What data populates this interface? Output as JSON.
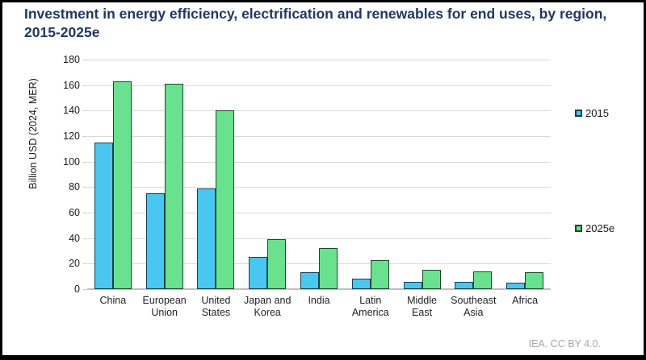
{
  "header": {
    "title": "Investment in energy efficiency, electrification and renewables for end uses, by region, 2015-2025e"
  },
  "chart_data": {
    "type": "bar",
    "title": "Investment in energy efficiency, electrification and renewables for end uses, by region, 2015-2025e",
    "categories": [
      "China",
      "European Union",
      "United States",
      "Japan and Korea",
      "India",
      "Latin America",
      "Middle East",
      "Southeast Asia",
      "Africa"
    ],
    "xtick_display": [
      "China",
      "European\nUnion",
      "United\nStates",
      "Japan and\nKorea",
      "India",
      "Latin\nAmerica",
      "Middle\nEast",
      "Southeast\nAsia",
      "Africa"
    ],
    "series": [
      {
        "name": "2015",
        "values": [
          115,
          75,
          79,
          25,
          13,
          8,
          6,
          6,
          5
        ],
        "color": "#49C7F0",
        "border": "#163F50"
      },
      {
        "name": "2025e",
        "values": [
          163,
          161,
          140,
          39,
          32,
          23,
          15,
          14,
          13
        ],
        "color": "#69E18E",
        "border": "#1B4A28"
      }
    ],
    "xlabel": "",
    "ylabel": "Billion USD (2024, MER)",
    "ylim": [
      0,
      180
    ],
    "ytick_step": 20,
    "grid": true,
    "legend_position": "right"
  },
  "legend": {
    "items": [
      {
        "label": "2015"
      },
      {
        "label": "2025e"
      }
    ]
  },
  "footer": {
    "attribution": "IEA. CC BY 4.0."
  },
  "colors": {
    "title_text": "#1F3864",
    "gridline": "#D9D9D9",
    "axis_line": "#BFBFBF",
    "tick_text": "#1A1A1A",
    "footer_text": "#A6A6A6",
    "background": "#FFFFFF",
    "frame_border": "#000000"
  }
}
